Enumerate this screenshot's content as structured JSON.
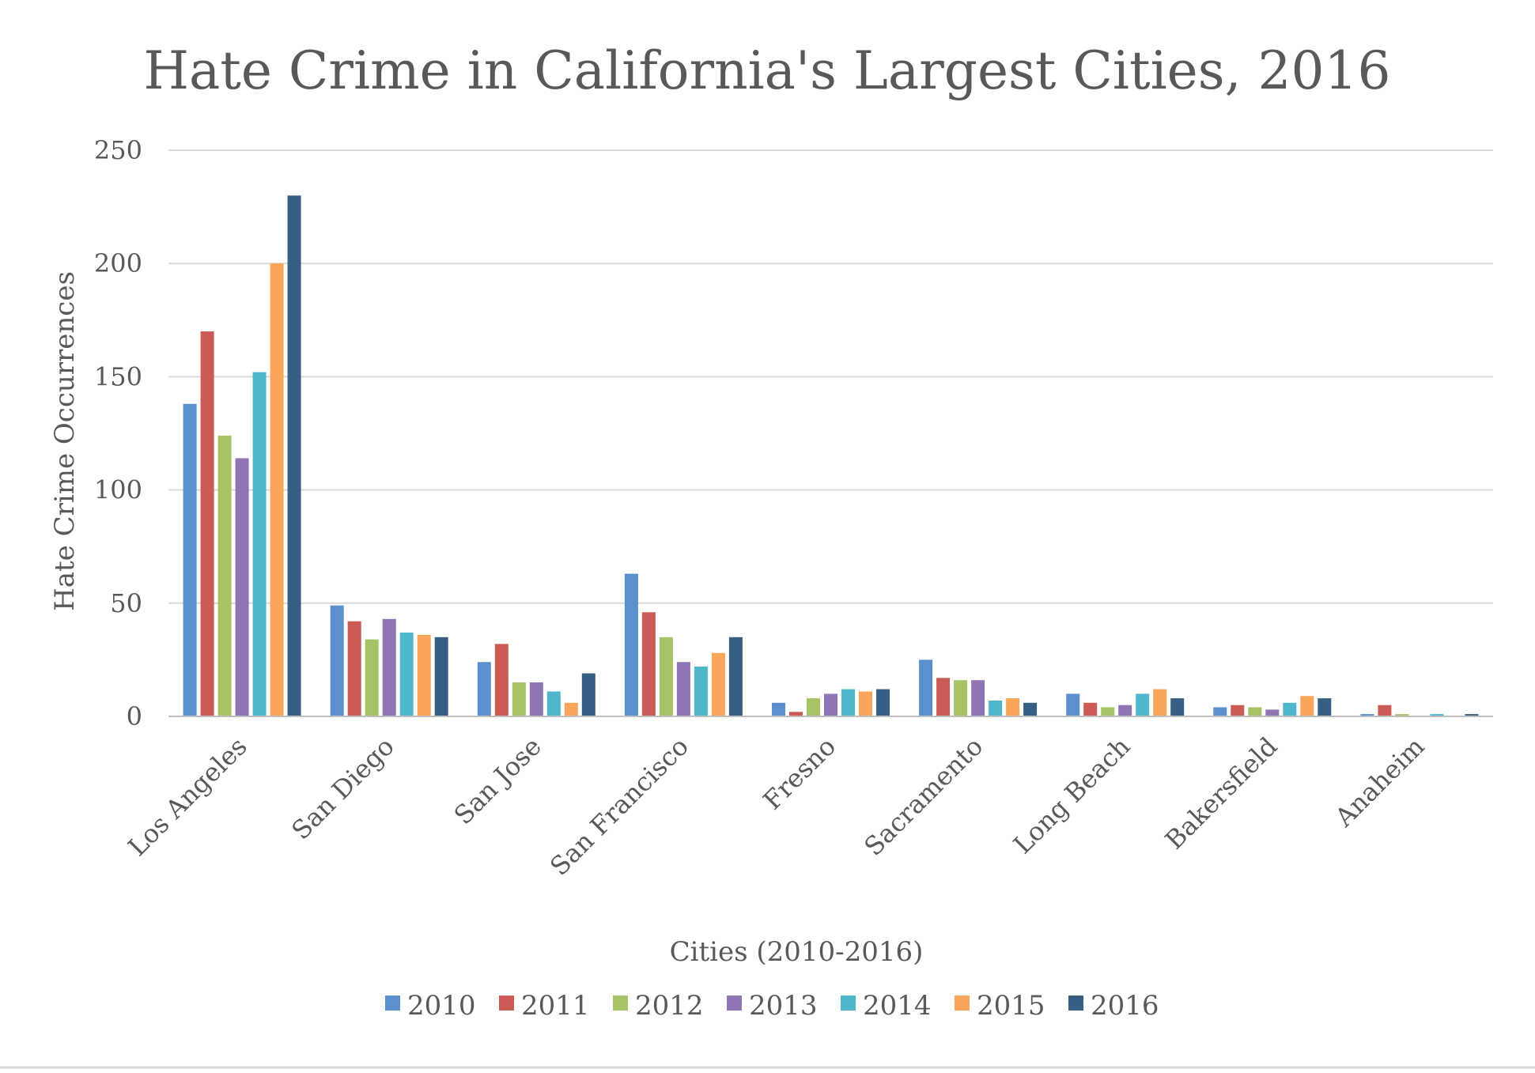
{
  "chart_data": {
    "type": "bar",
    "title": "Hate Crime in California's Largest Cities, 2016",
    "xlabel": "Cities (2010-2016)",
    "ylabel": "Hate Crime Occurrences",
    "ylim": [
      0,
      250
    ],
    "yticks": [
      0,
      50,
      100,
      150,
      200,
      250
    ],
    "grid": true,
    "legend_position": "bottom",
    "categories": [
      "Los Angeles",
      "San Diego",
      "San Jose",
      "San Francisco",
      "Fresno",
      "Sacramento",
      "Long Beach",
      "Bakersfield",
      "Anaheim"
    ],
    "series": [
      {
        "name": "2010",
        "color": "#5b8fce",
        "values": [
          138,
          49,
          24,
          63,
          6,
          25,
          10,
          4,
          1
        ]
      },
      {
        "name": "2011",
        "color": "#cc5a55",
        "values": [
          170,
          42,
          32,
          46,
          2,
          17,
          6,
          5,
          5
        ]
      },
      {
        "name": "2012",
        "color": "#a6c466",
        "values": [
          124,
          34,
          15,
          35,
          8,
          16,
          4,
          4,
          1
        ]
      },
      {
        "name": "2013",
        "color": "#8f75b4",
        "values": [
          114,
          43,
          15,
          24,
          10,
          16,
          5,
          3,
          0
        ]
      },
      {
        "name": "2014",
        "color": "#4fb7cc",
        "values": [
          152,
          37,
          11,
          22,
          12,
          7,
          10,
          6,
          1
        ]
      },
      {
        "name": "2015",
        "color": "#f9a55a",
        "values": [
          200,
          36,
          6,
          28,
          11,
          8,
          12,
          9,
          0
        ]
      },
      {
        "name": "2016",
        "color": "#375e83",
        "values": [
          230,
          35,
          19,
          35,
          12,
          6,
          8,
          8,
          1
        ]
      }
    ]
  }
}
